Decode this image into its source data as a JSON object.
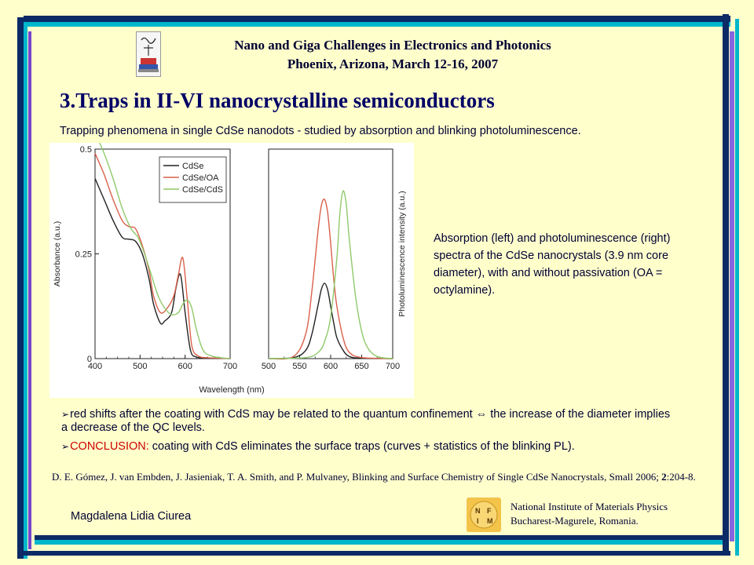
{
  "header": {
    "line1": "Nano and Giga Challenges in Electronics and Photonics",
    "line2": "Phoenix, Arizona, March 12-16, 2007"
  },
  "title": "3.Traps in II-VI nanocrystalline semiconductors",
  "subtitle": "Trapping phenomena in single CdSe nanodots - studied by absorption and blinking photoluminescence.",
  "caption": "Absorption (left) and photoluminescence (right) spectra of the CdSe nanocrystals (3.9 nm core diameter), with and without passivation (OA = octylamine).",
  "bullets": {
    "b1_glyph": "➢",
    "b1_text": "red shifts after the coating with CdS may be related to the quantum confinement ⇔ the increase of the diameter implies a decrease of the QC levels.",
    "b2_glyph": "➢",
    "b2_label": "CONCLUSION:",
    "b2_text": " coating with CdS eliminates the surface traps (curves + statistics of the blinking PL)."
  },
  "reference": {
    "part1": "D. E. Gómez, J. van Embden, J. Jasieniak, T. A. Smith, and P. Mulvaney, Blinking and Surface Chemistry of Single CdSe Nanocrystals, Small 2006; ",
    "volume": "2",
    "part2": ":204-8."
  },
  "footer": {
    "author": "Magdalena Lidia Ciurea",
    "institute_line1": "National Institute of Materials Physics",
    "institute_line2": "Bucharest-Magurele, Romania.",
    "logo_letters": [
      "N",
      "F",
      "I",
      "M"
    ]
  },
  "colors": {
    "CdSe": "#222222",
    "CdSe/OA": "#d9604a",
    "CdSe/CdS": "#8fc96a"
  },
  "chart_data": [
    {
      "type": "line",
      "ylabel": "Absorbance (a.u.)",
      "xlabel": "Wavelength (nm)",
      "xlim": [
        400,
        700
      ],
      "ylim": [
        0,
        0.5
      ],
      "xticks": [
        400,
        500,
        600,
        700
      ],
      "yticks": [
        {
          "value": 0,
          "label": "0"
        },
        {
          "value": 0.25,
          "label": "0.25"
        },
        {
          "value": 0.5,
          "label": "0.5"
        }
      ],
      "legend": "top-right",
      "series": [
        {
          "name": "CdSe",
          "x": [
            400,
            420,
            440,
            460,
            475,
            490,
            505,
            520,
            530,
            545,
            555,
            570,
            580,
            590,
            600,
            612,
            625,
            645,
            670,
            700
          ],
          "y": [
            0.43,
            0.38,
            0.33,
            0.29,
            0.285,
            0.28,
            0.25,
            0.19,
            0.13,
            0.085,
            0.09,
            0.11,
            0.17,
            0.2,
            0.11,
            0.02,
            0.004,
            0.002,
            0.001,
            0
          ]
        },
        {
          "name": "CdSe/OA",
          "x": [
            400,
            420,
            440,
            460,
            475,
            490,
            505,
            520,
            530,
            545,
            560,
            575,
            585,
            595,
            605,
            615,
            630,
            650,
            680,
            700
          ],
          "y": [
            0.49,
            0.44,
            0.38,
            0.33,
            0.315,
            0.31,
            0.27,
            0.21,
            0.15,
            0.11,
            0.12,
            0.15,
            0.2,
            0.24,
            0.14,
            0.03,
            0.006,
            0.002,
            0.001,
            0
          ]
        },
        {
          "name": "CdSe/CdS",
          "x": [
            400,
            420,
            440,
            460,
            480,
            495,
            510,
            525,
            540,
            555,
            570,
            585,
            595,
            605,
            615,
            625,
            640,
            660,
            680,
            700
          ],
          "y": [
            0.54,
            0.49,
            0.43,
            0.36,
            0.31,
            0.29,
            0.25,
            0.2,
            0.15,
            0.12,
            0.105,
            0.11,
            0.13,
            0.14,
            0.12,
            0.07,
            0.02,
            0.006,
            0.002,
            0
          ]
        }
      ]
    },
    {
      "type": "line",
      "ylabel": "Photoluminescence intensity (a.u.)",
      "xlabel": "Wavelength (nm)",
      "xlim": [
        500,
        700
      ],
      "ylim": [
        0,
        1
      ],
      "xticks": [
        500,
        550,
        600,
        650,
        700
      ],
      "series": [
        {
          "name": "CdSe",
          "x": [
            500,
            540,
            560,
            570,
            580,
            585,
            590,
            595,
            600,
            605,
            610,
            620,
            630,
            650,
            700
          ],
          "y": [
            0,
            0.005,
            0.04,
            0.12,
            0.26,
            0.33,
            0.36,
            0.33,
            0.25,
            0.17,
            0.1,
            0.04,
            0.01,
            0.002,
            0
          ]
        },
        {
          "name": "CdSe/OA",
          "x": [
            500,
            540,
            560,
            570,
            580,
            585,
            590,
            595,
            600,
            605,
            610,
            620,
            630,
            650,
            700
          ],
          "y": [
            0,
            0.01,
            0.12,
            0.33,
            0.62,
            0.73,
            0.76,
            0.7,
            0.55,
            0.38,
            0.25,
            0.1,
            0.03,
            0.005,
            0
          ]
        },
        {
          "name": "CdSe/CdS",
          "x": [
            500,
            560,
            580,
            590,
            600,
            610,
            615,
            620,
            625,
            630,
            640,
            650,
            660,
            675,
            700
          ],
          "y": [
            0,
            0.005,
            0.03,
            0.08,
            0.2,
            0.48,
            0.7,
            0.8,
            0.74,
            0.57,
            0.3,
            0.13,
            0.05,
            0.01,
            0
          ]
        }
      ]
    }
  ]
}
